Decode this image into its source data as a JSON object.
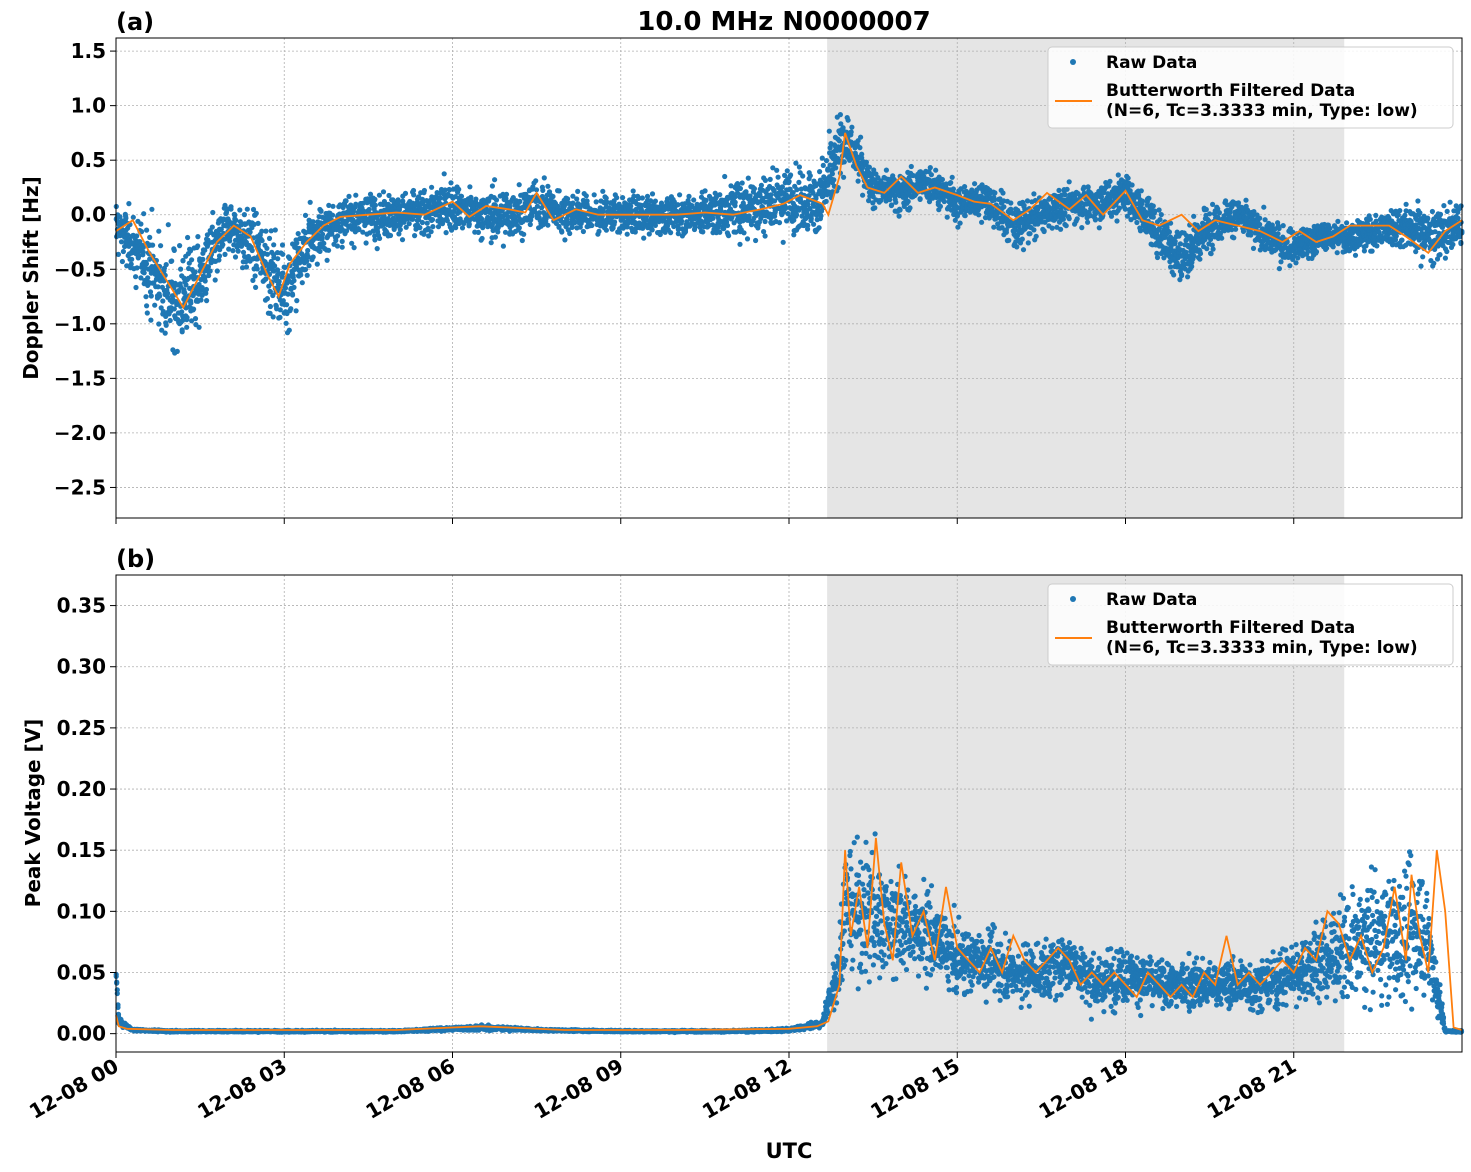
{
  "figure": {
    "title": "10.0 MHz N0000007",
    "xlabel": "UTC",
    "x_tick_labels": [
      "12-08 00",
      "12-08 03",
      "12-08 06",
      "12-08 09",
      "12-08 12",
      "12-08 15",
      "12-08 18",
      "12-08 21"
    ],
    "shaded_interval_hours": [
      12.68,
      21.9
    ],
    "colors": {
      "raw": "#1f77b4",
      "filtered": "#ff7f0e",
      "shade": "#e5e5e5",
      "grid": "#b0b0b0"
    }
  },
  "chart_data": [
    {
      "panel_label": "(a)",
      "type": "scatter",
      "ylabel": "Doppler Shift [Hz]",
      "xlim_hours": [
        0,
        24
      ],
      "ylim": [
        -2.78,
        1.62
      ],
      "y_ticks": [
        1.5,
        1.0,
        0.5,
        0.0,
        -0.5,
        -1.0,
        -1.5,
        -2.0,
        -2.5
      ],
      "y_tick_labels": [
        "1.5",
        "1.0",
        "0.5",
        "0.0",
        "−0.5",
        "−1.0",
        "−1.5",
        "−2.0",
        "−2.5"
      ],
      "grid": true,
      "legend_placement": "top-right",
      "series": [
        {
          "name": "Raw Data",
          "style": "points",
          "x_hours": [
            0,
            0.5,
            1.0,
            1.5,
            2.0,
            2.5,
            3.0,
            3.5,
            4.0,
            4.5,
            5.0,
            5.5,
            6.0,
            6.5,
            7.0,
            7.5,
            8.0,
            8.5,
            9.0,
            9.5,
            10.0,
            10.5,
            11.0,
            11.5,
            12.0,
            12.5,
            12.7,
            13.0,
            13.5,
            14.0,
            14.5,
            15.0,
            15.5,
            16.0,
            16.5,
            17.0,
            17.5,
            18.0,
            18.5,
            19.0,
            19.5,
            20.0,
            20.5,
            21.0,
            21.5,
            22.0,
            22.5,
            23.0,
            23.5,
            24.0
          ],
          "y_center": [
            -0.1,
            -0.4,
            -0.8,
            -0.6,
            -0.1,
            -0.3,
            -0.7,
            -0.2,
            -0.05,
            0.0,
            0.0,
            0.02,
            0.1,
            0.0,
            0.0,
            0.1,
            0.02,
            0.0,
            0.0,
            0.0,
            0.0,
            0.02,
            0.05,
            0.1,
            0.15,
            0.1,
            0.3,
            0.7,
            0.25,
            0.2,
            0.3,
            0.1,
            0.15,
            -0.1,
            0.0,
            0.1,
            0.1,
            0.2,
            -0.1,
            -0.4,
            -0.1,
            0.0,
            -0.2,
            -0.3,
            -0.2,
            -0.2,
            -0.15,
            -0.1,
            -0.2,
            -0.1
          ],
          "y_spread": [
            0.3,
            0.5,
            0.7,
            0.6,
            0.35,
            0.45,
            0.6,
            0.4,
            0.35,
            0.3,
            0.3,
            0.3,
            0.35,
            0.3,
            0.35,
            0.3,
            0.3,
            0.25,
            0.25,
            0.25,
            0.25,
            0.3,
            0.35,
            0.45,
            0.4,
            0.45,
            0.55,
            0.35,
            0.25,
            0.25,
            0.25,
            0.25,
            0.25,
            0.3,
            0.25,
            0.25,
            0.25,
            0.3,
            0.3,
            0.4,
            0.3,
            0.25,
            0.25,
            0.25,
            0.2,
            0.2,
            0.25,
            0.3,
            0.35,
            0.3
          ]
        },
        {
          "name": "Butterworth Filtered Data\n(N=6, Tc=3.3333 min, Type: low)",
          "style": "line",
          "x_hours": [
            0,
            0.3,
            0.6,
            0.9,
            1.2,
            1.5,
            1.8,
            2.1,
            2.4,
            2.7,
            2.9,
            3.1,
            3.4,
            3.7,
            4.0,
            4.5,
            5.0,
            5.5,
            6.0,
            6.3,
            6.6,
            7.0,
            7.3,
            7.5,
            7.8,
            8.2,
            8.6,
            9.0,
            9.5,
            10.0,
            10.5,
            11.0,
            11.5,
            11.9,
            12.2,
            12.6,
            12.7,
            12.9,
            13.0,
            13.2,
            13.4,
            13.7,
            14.0,
            14.3,
            14.6,
            15.0,
            15.3,
            15.6,
            16.0,
            16.3,
            16.6,
            17.0,
            17.3,
            17.6,
            18.0,
            18.3,
            18.6,
            19.0,
            19.3,
            19.6,
            20.0,
            20.4,
            20.8,
            21.1,
            21.4,
            21.7,
            22.0,
            22.3,
            22.7,
            23.0,
            23.4,
            23.7,
            24.0
          ],
          "y": [
            -0.15,
            -0.05,
            -0.35,
            -0.6,
            -0.85,
            -0.55,
            -0.25,
            -0.1,
            -0.2,
            -0.55,
            -0.75,
            -0.45,
            -0.25,
            -0.1,
            -0.02,
            0.0,
            0.02,
            0.0,
            0.12,
            -0.02,
            0.08,
            0.05,
            0.02,
            0.2,
            -0.05,
            0.05,
            0.0,
            0.0,
            0.0,
            0.0,
            0.02,
            0.0,
            0.05,
            0.1,
            0.18,
            0.1,
            0.0,
            0.35,
            0.75,
            0.45,
            0.25,
            0.2,
            0.35,
            0.2,
            0.25,
            0.18,
            0.12,
            0.1,
            -0.05,
            0.05,
            0.2,
            0.05,
            0.18,
            0.0,
            0.22,
            -0.05,
            -0.1,
            0.0,
            -0.15,
            -0.05,
            -0.1,
            -0.15,
            -0.25,
            -0.15,
            -0.25,
            -0.2,
            -0.1,
            -0.1,
            -0.1,
            -0.2,
            -0.35,
            -0.15,
            -0.05
          ]
        }
      ]
    },
    {
      "panel_label": "(b)",
      "type": "scatter",
      "ylabel": "Peak Voltage [V]",
      "xlim_hours": [
        0,
        24
      ],
      "ylim": [
        -0.015,
        0.375
      ],
      "y_ticks": [
        0.35,
        0.3,
        0.25,
        0.2,
        0.15,
        0.1,
        0.05,
        0.0
      ],
      "y_tick_labels": [
        "0.35",
        "0.30",
        "0.25",
        "0.20",
        "0.15",
        "0.10",
        "0.05",
        "0.00"
      ],
      "grid": true,
      "legend_placement": "top-right",
      "series": [
        {
          "name": "Raw Data",
          "style": "points",
          "x_hours": [
            0,
            0.05,
            0.3,
            1.0,
            3.0,
            5.0,
            6.0,
            6.5,
            7.0,
            7.5,
            9.0,
            11.0,
            12.0,
            12.6,
            12.9,
            13.0,
            13.5,
            14.0,
            14.5,
            15.0,
            15.5,
            16.0,
            16.5,
            17.0,
            17.5,
            18.0,
            18.5,
            19.0,
            19.5,
            20.0,
            20.5,
            21.0,
            21.5,
            22.0,
            22.5,
            23.0,
            23.3,
            23.5,
            23.7,
            24.0
          ],
          "y_center": [
            0.05,
            0.01,
            0.003,
            0.002,
            0.002,
            0.002,
            0.004,
            0.005,
            0.004,
            0.003,
            0.002,
            0.002,
            0.003,
            0.008,
            0.06,
            0.1,
            0.1,
            0.09,
            0.08,
            0.06,
            0.06,
            0.05,
            0.05,
            0.06,
            0.04,
            0.05,
            0.04,
            0.04,
            0.04,
            0.04,
            0.04,
            0.05,
            0.06,
            0.07,
            0.08,
            0.08,
            0.09,
            0.05,
            0.002,
            0.002
          ],
          "y_spread": [
            0.015,
            0.004,
            0.001,
            0.001,
            0.001,
            0.001,
            0.002,
            0.003,
            0.002,
            0.001,
            0.001,
            0.001,
            0.002,
            0.005,
            0.05,
            0.07,
            0.08,
            0.06,
            0.05,
            0.04,
            0.04,
            0.035,
            0.035,
            0.04,
            0.03,
            0.035,
            0.03,
            0.03,
            0.03,
            0.03,
            0.03,
            0.035,
            0.05,
            0.06,
            0.07,
            0.08,
            0.08,
            0.05,
            0.001,
            0.001
          ]
        },
        {
          "name": "Butterworth Filtered Data\n(N=6, Tc=3.3333 min, Type: low)",
          "style": "line",
          "x_hours": [
            0,
            0.05,
            0.2,
            1.0,
            3.0,
            5.0,
            6.0,
            6.5,
            7.0,
            8.0,
            10.0,
            12.0,
            12.5,
            12.7,
            12.9,
            13.0,
            13.1,
            13.25,
            13.4,
            13.55,
            13.7,
            13.85,
            14.0,
            14.2,
            14.4,
            14.6,
            14.8,
            15.0,
            15.2,
            15.4,
            15.6,
            15.8,
            16.0,
            16.2,
            16.4,
            16.6,
            16.8,
            17.0,
            17.2,
            17.4,
            17.6,
            17.8,
            18.0,
            18.2,
            18.4,
            18.6,
            18.8,
            19.0,
            19.2,
            19.4,
            19.6,
            19.8,
            20.0,
            20.2,
            20.4,
            20.6,
            20.8,
            21.0,
            21.2,
            21.4,
            21.6,
            21.8,
            22.0,
            22.2,
            22.4,
            22.6,
            22.8,
            23.0,
            23.1,
            23.25,
            23.4,
            23.55,
            23.7,
            23.85,
            24.0
          ],
          "y": [
            0.015,
            0.006,
            0.004,
            0.003,
            0.003,
            0.003,
            0.005,
            0.006,
            0.005,
            0.003,
            0.003,
            0.004,
            0.006,
            0.01,
            0.04,
            0.15,
            0.08,
            0.12,
            0.07,
            0.16,
            0.09,
            0.06,
            0.14,
            0.08,
            0.1,
            0.06,
            0.12,
            0.07,
            0.06,
            0.05,
            0.07,
            0.05,
            0.08,
            0.06,
            0.05,
            0.06,
            0.07,
            0.06,
            0.04,
            0.05,
            0.04,
            0.05,
            0.04,
            0.03,
            0.05,
            0.04,
            0.03,
            0.04,
            0.03,
            0.05,
            0.04,
            0.08,
            0.04,
            0.05,
            0.04,
            0.05,
            0.06,
            0.05,
            0.07,
            0.06,
            0.1,
            0.09,
            0.06,
            0.08,
            0.05,
            0.07,
            0.12,
            0.06,
            0.13,
            0.08,
            0.05,
            0.15,
            0.1,
            0.005,
            0.003
          ]
        }
      ]
    }
  ]
}
